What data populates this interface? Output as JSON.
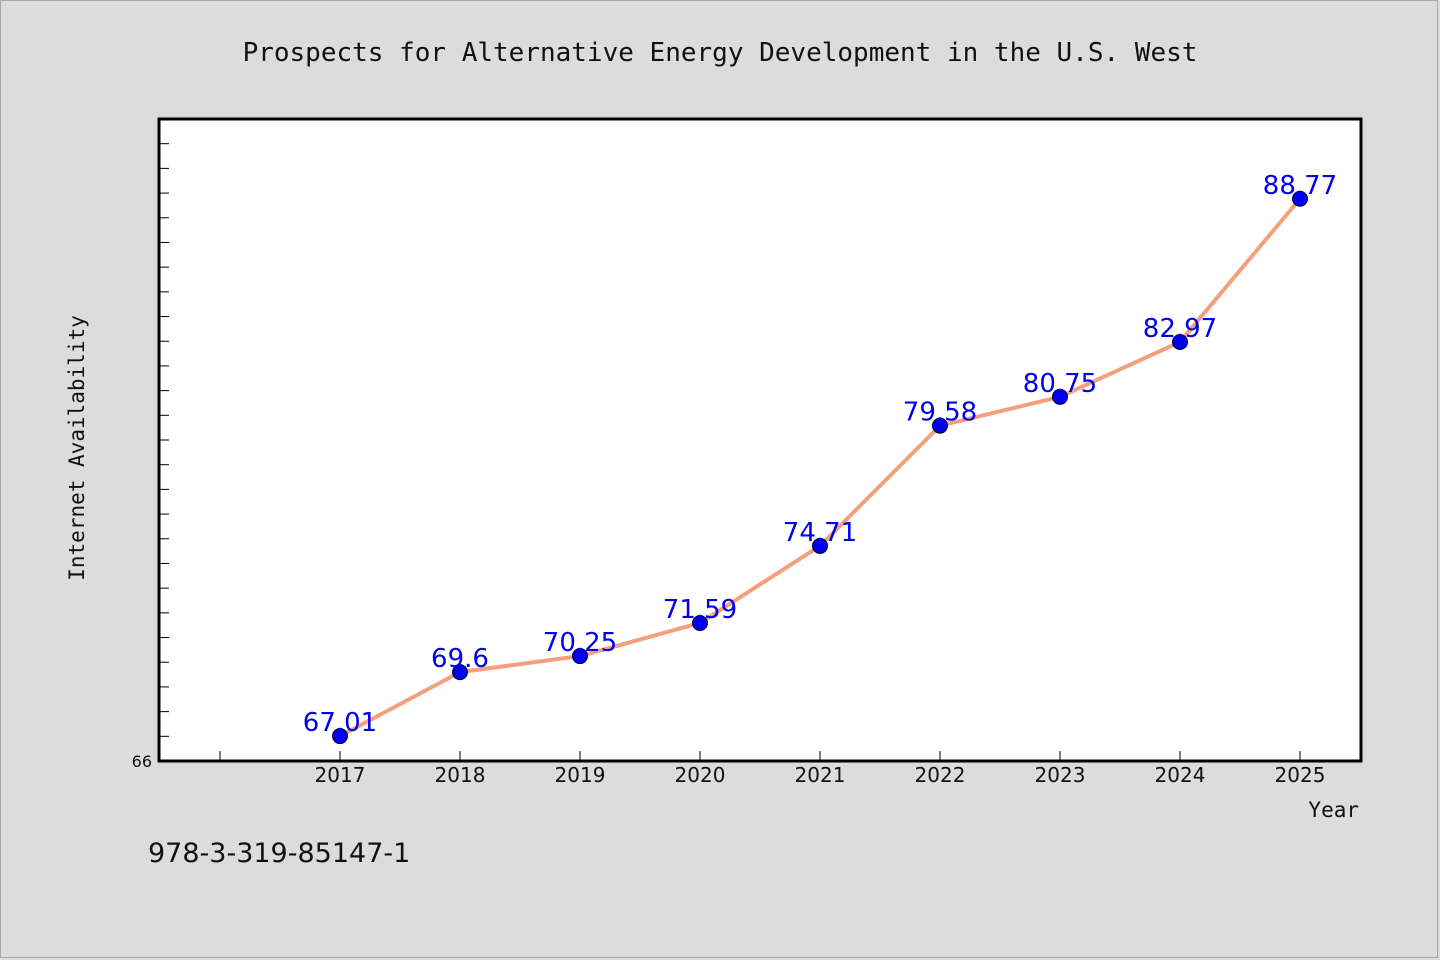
{
  "chart_data": {
    "type": "line",
    "title": "Prospects for Alternative Energy Development in the U.S. West",
    "xlabel": "Year",
    "ylabel": "Internet Availability",
    "categories": [
      "2017",
      "2018",
      "2019",
      "2020",
      "2021",
      "2022",
      "2023",
      "2024",
      "2025"
    ],
    "series": [
      {
        "values": [
          67.01,
          69.6,
          70.25,
          71.59,
          74.71,
          79.58,
          80.75,
          82.97,
          88.77
        ]
      }
    ],
    "data_labels": [
      "67.01",
      "69.6",
      "70.25",
      "71.59",
      "74.71",
      "79.58",
      "80.75",
      "82.97",
      "88.77"
    ],
    "ylim": [
      66,
      92
    ],
    "y_tick_label": "66",
    "grid": false,
    "colors": {
      "line": "#f4a07c",
      "marker": "#0000ee",
      "label": "#0000ee"
    }
  },
  "footer": {
    "text": "978-3-319-85147-1"
  }
}
